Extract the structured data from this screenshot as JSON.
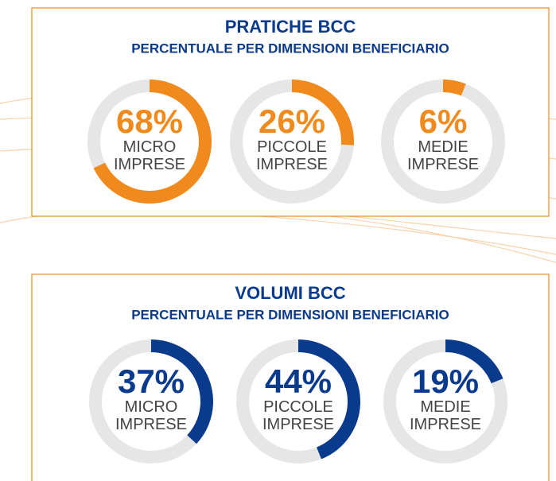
{
  "chart_data": [
    {
      "type": "donut",
      "title": "PRATICHE BCC",
      "subtitle": "PERCENTUALE PER DIMENSIONI BENEFICIARIO",
      "categories": [
        "MICRO IMPRESE",
        "PICCOLE IMPRESE",
        "MEDIE IMPRESE"
      ],
      "values": [
        68,
        26,
        6
      ],
      "value_labels": [
        "68%",
        "26%",
        "6%"
      ],
      "color": "#f08a1c"
    },
    {
      "type": "donut",
      "title": "VOLUMI BCC",
      "subtitle": "PERCENTUALE PER DIMENSIONI BENEFICIARIO",
      "categories": [
        "MICRO IMPRESE",
        "PICCOLE IMPRESE",
        "MEDIE IMPRESE"
      ],
      "values": [
        37,
        44,
        19
      ],
      "value_labels": [
        "37%",
        "44%",
        "19%"
      ],
      "color": "#0a3a8c"
    }
  ]
}
